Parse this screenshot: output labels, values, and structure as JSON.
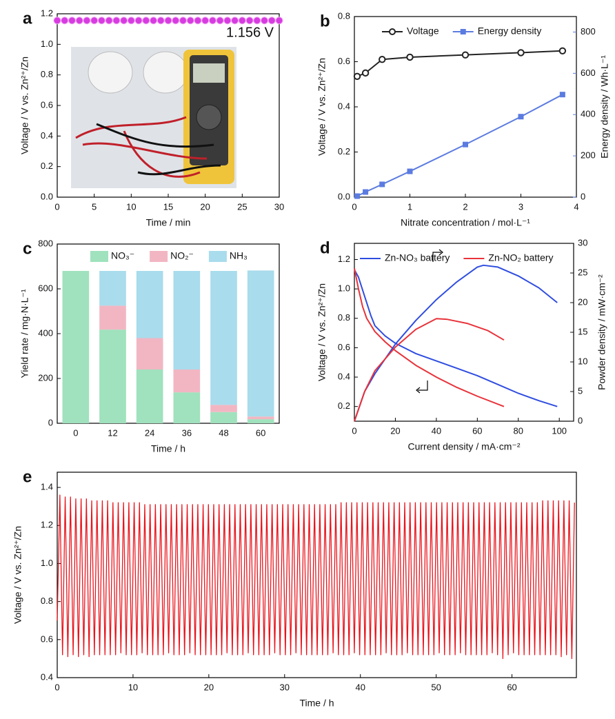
{
  "chart_data": [
    {
      "panel": "a",
      "type": "scatter",
      "x_label": "Time / min",
      "y_label": "Voltage / V vs. Zn²⁺/Zn",
      "annotation": "1.156 V",
      "color": "#d63ce0",
      "x": [
        0,
        1,
        2,
        3,
        4,
        5,
        6,
        7,
        8,
        9,
        10,
        11,
        12,
        13,
        14,
        15,
        16,
        17,
        18,
        19,
        20,
        21,
        22,
        23,
        24,
        25,
        26,
        27,
        28,
        29,
        30
      ],
      "values": [
        1.156,
        1.156,
        1.156,
        1.156,
        1.156,
        1.156,
        1.156,
        1.156,
        1.156,
        1.156,
        1.156,
        1.156,
        1.156,
        1.156,
        1.156,
        1.156,
        1.156,
        1.156,
        1.156,
        1.156,
        1.156,
        1.156,
        1.156,
        1.156,
        1.156,
        1.156,
        1.156,
        1.156,
        1.156,
        1.156,
        1.156
      ],
      "xlim": [
        0,
        30
      ],
      "xticks": [
        0,
        5,
        10,
        15,
        20,
        25,
        30
      ],
      "ylim": [
        0,
        1.2
      ],
      "yticks": [
        {
          "value": 0,
          "label": "0.0"
        },
        0.2,
        0.4,
        0.6,
        0.8,
        {
          "value": 1,
          "label": "1.0"
        },
        1.2
      ]
    },
    {
      "panel": "b",
      "type": "line",
      "x_label": "Nitrate concentration / mol·L⁻¹",
      "y_label": "Voltage / V vs. Zn²⁺/Zn",
      "y2_label": "Energy density / Wh·L⁻¹",
      "y2_color": "#5b7be0",
      "x": [
        0.05,
        0.2,
        0.5,
        1,
        2,
        3,
        3.75
      ],
      "series": [
        {
          "name": "Voltage",
          "color": "#222222",
          "marker": "circle",
          "values": [
            0.535,
            0.55,
            0.61,
            0.62,
            0.63,
            0.64,
            0.648
          ]
        },
        {
          "name": "Energy density",
          "color": "#5b7be0",
          "marker": "square",
          "axis": "y2",
          "values": [
            5,
            25,
            62,
            125,
            255,
            390,
            497
          ]
        }
      ],
      "xlim": [
        0,
        4
      ],
      "xticks": [
        0,
        1,
        2,
        3,
        4
      ],
      "ylim": [
        0,
        0.8
      ],
      "yticks": [
        {
          "value": 0,
          "label": "0.0"
        },
        0.2,
        0.4,
        0.6,
        0.8
      ],
      "y2lim": [
        0,
        875
      ],
      "y2ticks": [
        0,
        200,
        400,
        600,
        800
      ]
    },
    {
      "panel": "c",
      "type": "stacked-bar",
      "x_label": "Time / h",
      "y_label": "Yield rate / mg·N·L⁻¹",
      "categories": [
        "0",
        "12",
        "24",
        "36",
        "48",
        "60"
      ],
      "series": [
        {
          "name": "NO₃⁻",
          "color": "#9fe2bd",
          "values": [
            680,
            418,
            240,
            138,
            50,
            18
          ]
        },
        {
          "name": "NO₂⁻",
          "color": "#f2b6c3",
          "values": [
            0,
            107,
            140,
            102,
            32,
            12
          ]
        },
        {
          "name": "NH₃",
          "color": "#a9dcec",
          "values": [
            0,
            155,
            300,
            440,
            598,
            652
          ]
        }
      ],
      "ylim": [
        0,
        800
      ],
      "yticks": [
        0,
        200,
        400,
        600,
        800
      ]
    },
    {
      "panel": "d",
      "type": "line",
      "x_label": "Current density / mA·cm⁻²",
      "y_label": "Voltage / V vs. Zn²⁺/Zn",
      "y2_label": "Powder density / mW·cm⁻²",
      "series": [
        {
          "name": "Zn-NO₃ battery",
          "color": "#2f4de0",
          "x": [
            0,
            2,
            5,
            8,
            10,
            15,
            20,
            30,
            40,
            50,
            60,
            70,
            80,
            90,
            99
          ],
          "values": [
            1.13,
            1.08,
            0.95,
            0.82,
            0.75,
            0.68,
            0.63,
            0.56,
            0.51,
            0.46,
            0.41,
            0.35,
            0.29,
            0.24,
            0.2
          ]
        },
        {
          "name": "Zn-NO₂ battery",
          "color": "#e8323a",
          "x": [
            0,
            2,
            4,
            6,
            10,
            15,
            20,
            30,
            40,
            50,
            60,
            73
          ],
          "values": [
            1.14,
            1.0,
            0.88,
            0.8,
            0.71,
            0.64,
            0.58,
            0.48,
            0.4,
            0.33,
            0.27,
            0.2
          ]
        },
        {
          "color": "#2f4de0",
          "axis": "y2",
          "x": [
            0,
            5,
            10,
            20,
            30,
            40,
            50,
            60,
            63,
            70,
            80,
            90,
            99
          ],
          "values": [
            0,
            5,
            8,
            13,
            17,
            20.5,
            23.5,
            26,
            26.3,
            26,
            24.5,
            22.5,
            20
          ]
        },
        {
          "color": "#e8323a",
          "axis": "y2",
          "x": [
            0,
            5,
            10,
            20,
            30,
            40,
            45,
            55,
            65,
            73
          ],
          "values": [
            0,
            5,
            8.5,
            12.5,
            15.5,
            17.3,
            17.2,
            16.5,
            15.3,
            13.7
          ]
        }
      ],
      "xlim": [
        0,
        107
      ],
      "xticks": [
        0,
        20,
        40,
        60,
        80,
        100
      ],
      "ylim": [
        0.1,
        1.31
      ],
      "yticks": [
        0.2,
        0.4,
        0.6,
        0.8,
        {
          "value": 1,
          "label": "1.0"
        },
        1.2
      ],
      "y2lim": [
        0,
        30
      ],
      "y2ticks": [
        0,
        5,
        10,
        15,
        20,
        25,
        30
      ]
    },
    {
      "panel": "e",
      "type": "line",
      "x_label": "Time / h",
      "y_label": "Voltage / V vs. Zn²⁺/Zn",
      "series": [
        {
          "color": "#e8141c",
          "x": [
            0,
            0.35,
            0.7,
            1.05,
            1.4,
            1.75,
            2.1,
            2.45,
            2.8,
            3.15,
            3.5,
            3.85,
            4.2,
            4.55,
            4.9,
            5.25,
            5.6,
            5.95,
            6.3,
            6.65,
            7,
            7.35,
            7.7,
            8.05,
            8.4,
            8.75,
            9.1,
            9.45,
            9.8,
            10.15,
            10.5,
            10.85,
            11.2,
            11.55,
            11.9,
            12.25,
            12.6,
            12.95,
            13.3,
            13.65,
            14,
            14.35,
            14.7,
            15.05,
            15.4,
            15.75,
            16.1,
            16.45,
            16.8,
            17.15,
            17.5,
            17.85,
            18.2,
            18.55,
            18.9,
            19.25,
            19.6,
            19.95,
            20.3,
            20.65,
            21,
            21.35,
            21.7,
            22.05,
            22.4,
            22.75,
            23.1,
            23.45,
            23.8,
            24.15,
            24.5,
            24.85,
            25.2,
            25.55,
            25.9,
            26.25,
            26.6,
            26.95,
            27.3,
            27.65,
            28,
            28.35,
            28.7,
            29.05,
            29.4,
            29.75,
            30.1,
            30.45,
            30.8,
            31.15,
            31.5,
            31.85,
            32.2,
            32.55,
            32.9,
            33.25,
            33.6,
            33.95,
            34.3,
            34.65,
            35,
            35.35,
            35.7,
            36.05,
            36.4,
            36.75,
            37.1,
            37.45,
            37.8,
            38.15,
            38.5,
            38.85,
            39.2,
            39.55,
            39.9,
            40.25,
            40.6,
            40.95,
            41.3,
            41.65,
            42,
            42.35,
            42.7,
            43.05,
            43.4,
            43.75,
            44.1,
            44.45,
            44.8,
            45.15,
            45.5,
            45.85,
            46.2,
            46.55,
            46.9,
            47.25,
            47.6,
            47.95,
            48.3,
            48.65,
            49,
            49.35,
            49.7,
            50.05,
            50.4,
            50.75,
            51.1,
            51.45,
            51.8,
            52.15,
            52.5,
            52.85,
            53.2,
            53.55,
            53.9,
            54.25,
            54.6,
            54.95,
            55.3,
            55.65,
            56,
            56.35,
            56.7,
            57.05,
            57.4,
            57.75,
            58.1,
            58.45,
            58.8,
            59.15,
            59.5,
            59.85,
            60.2,
            60.55,
            60.9,
            61.25,
            61.6,
            61.95,
            62.3,
            62.65,
            63,
            63.35,
            63.7,
            64.05,
            64.4,
            64.75,
            65.1,
            65.45,
            65.8,
            66.15,
            66.5,
            66.85,
            67.2,
            67.55,
            67.9,
            68.25
          ],
          "values": [
            0.7,
            1.36,
            0.52,
            1.35,
            0.51,
            1.35,
            0.52,
            1.34,
            0.51,
            1.34,
            0.52,
            1.34,
            0.51,
            1.33,
            0.52,
            1.33,
            0.52,
            1.33,
            0.52,
            1.33,
            0.52,
            1.32,
            0.52,
            1.32,
            0.53,
            1.32,
            0.52,
            1.32,
            0.52,
            1.32,
            0.52,
            1.32,
            0.53,
            1.31,
            0.52,
            1.31,
            0.52,
            1.31,
            0.52,
            1.31,
            0.52,
            1.31,
            0.53,
            1.31,
            0.52,
            1.31,
            0.52,
            1.31,
            0.52,
            1.31,
            0.53,
            1.31,
            0.52,
            1.31,
            0.52,
            1.31,
            0.52,
            1.31,
            0.52,
            1.31,
            0.52,
            1.31,
            0.52,
            1.31,
            0.53,
            1.31,
            0.52,
            1.31,
            0.52,
            1.31,
            0.52,
            1.31,
            0.53,
            1.31,
            0.52,
            1.31,
            0.52,
            1.31,
            0.52,
            1.31,
            0.52,
            1.31,
            0.53,
            1.31,
            0.52,
            1.31,
            0.52,
            1.31,
            0.52,
            1.31,
            0.53,
            1.31,
            0.52,
            1.31,
            0.52,
            1.31,
            0.52,
            1.31,
            0.52,
            1.31,
            0.52,
            1.31,
            0.52,
            1.31,
            0.53,
            1.31,
            0.52,
            1.32,
            0.52,
            1.32,
            0.52,
            1.32,
            0.53,
            1.32,
            0.52,
            1.32,
            0.52,
            1.32,
            0.52,
            1.32,
            0.52,
            1.32,
            0.52,
            1.32,
            0.53,
            1.32,
            0.52,
            1.32,
            0.52,
            1.32,
            0.52,
            1.32,
            0.53,
            1.32,
            0.52,
            1.32,
            0.52,
            1.32,
            0.52,
            1.32,
            0.52,
            1.32,
            0.52,
            1.32,
            0.53,
            1.32,
            0.52,
            1.32,
            0.52,
            1.32,
            0.52,
            1.32,
            0.53,
            1.32,
            0.52,
            1.32,
            0.52,
            1.32,
            0.52,
            1.32,
            0.52,
            1.32,
            0.52,
            1.32,
            0.53,
            1.32,
            0.52,
            1.32,
            0.5,
            1.32,
            0.52,
            1.32,
            0.53,
            1.32,
            0.52,
            1.32,
            0.52,
            1.32,
            0.52,
            1.32,
            0.52,
            1.32,
            0.52,
            1.33,
            0.52,
            1.33,
            0.52,
            1.33,
            0.52,
            1.33,
            0.51,
            1.33,
            0.52,
            1.33,
            0.5,
            1.32
          ]
        }
      ],
      "xlim": [
        0,
        68.5
      ],
      "xticks": [
        0,
        10,
        20,
        30,
        40,
        50,
        60
      ],
      "ylim": [
        0.4,
        1.48
      ],
      "yticks": [
        0.4,
        0.6,
        0.8,
        {
          "value": 1,
          "label": "1.0"
        },
        1.2,
        1.4
      ]
    }
  ]
}
